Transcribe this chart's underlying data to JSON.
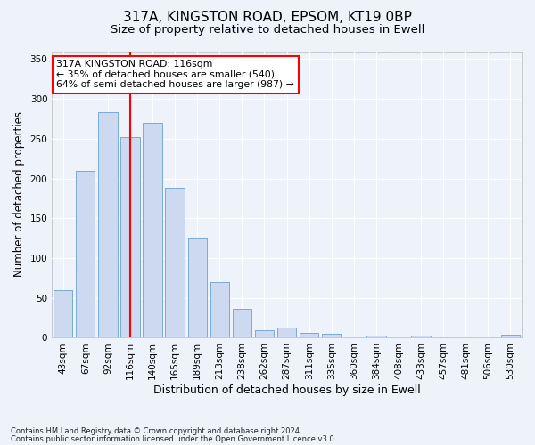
{
  "title1": "317A, KINGSTON ROAD, EPSOM, KT19 0BP",
  "title2": "Size of property relative to detached houses in Ewell",
  "xlabel": "Distribution of detached houses by size in Ewell",
  "ylabel": "Number of detached properties",
  "categories": [
    "43sqm",
    "67sqm",
    "92sqm",
    "116sqm",
    "140sqm",
    "165sqm",
    "189sqm",
    "213sqm",
    "238sqm",
    "262sqm",
    "287sqm",
    "311sqm",
    "335sqm",
    "360sqm",
    "384sqm",
    "408sqm",
    "433sqm",
    "457sqm",
    "481sqm",
    "506sqm",
    "530sqm"
  ],
  "values": [
    60,
    210,
    283,
    252,
    270,
    188,
    126,
    70,
    36,
    10,
    13,
    6,
    5,
    0,
    3,
    0,
    3,
    0,
    1,
    0,
    4
  ],
  "bar_color": "#ccd9f0",
  "bar_edge_color": "#7aaad0",
  "redline_index": 3,
  "annotation_line1": "317A KINGSTON ROAD: 116sqm",
  "annotation_line2": "← 35% of detached houses are smaller (540)",
  "annotation_line3": "64% of semi-detached houses are larger (987) →",
  "ylim": [
    0,
    360
  ],
  "yticks": [
    0,
    50,
    100,
    150,
    200,
    250,
    300,
    350
  ],
  "footnote1": "Contains HM Land Registry data © Crown copyright and database right 2024.",
  "footnote2": "Contains public sector information licensed under the Open Government Licence v3.0.",
  "bg_color": "#eef2fb",
  "grid_color": "#ffffff",
  "title1_fontsize": 11,
  "title2_fontsize": 9.5,
  "tick_fontsize": 7.5,
  "ylabel_fontsize": 8.5,
  "xlabel_fontsize": 9
}
